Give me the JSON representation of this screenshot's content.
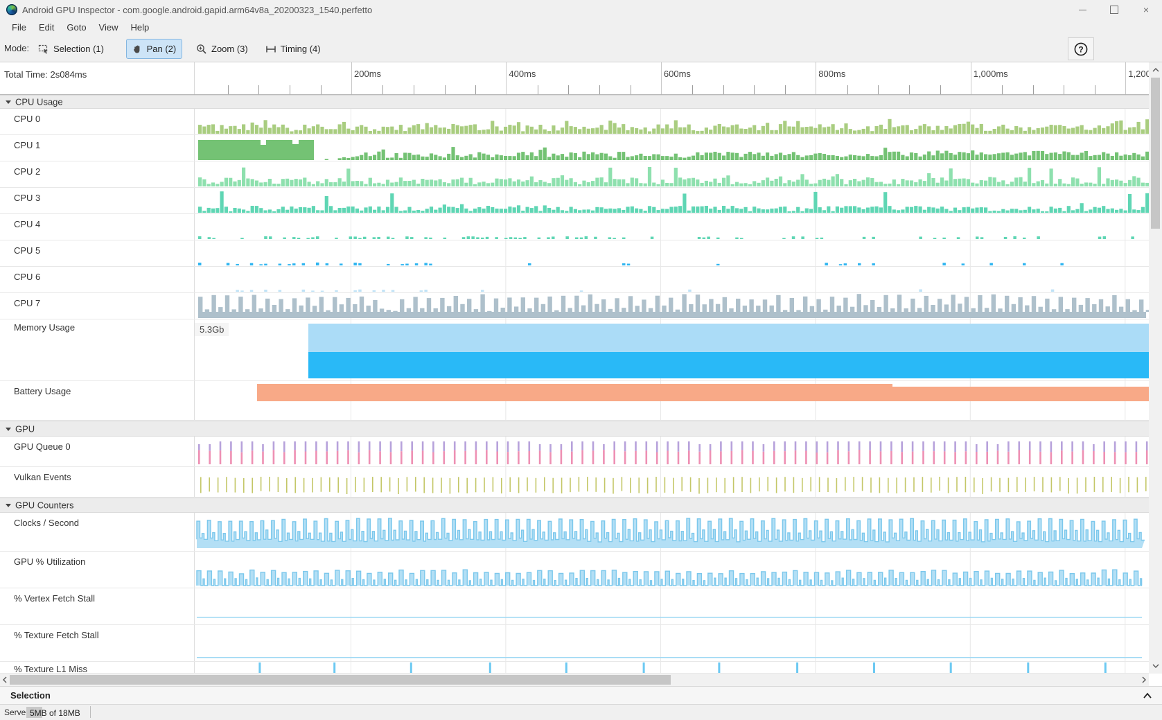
{
  "window": {
    "title": "Android GPU Inspector - com.google.android.gapid.arm64v8a_20200323_1540.perfetto",
    "controls": [
      {
        "name": "minimize-button",
        "icon": "minimize-icon"
      },
      {
        "name": "maximize-button",
        "icon": "maximize-icon"
      },
      {
        "name": "close-button",
        "icon": "close-icon",
        "glyph": "×"
      }
    ]
  },
  "menu": {
    "items": [
      "File",
      "Edit",
      "Goto",
      "View",
      "Help"
    ]
  },
  "toolbar": {
    "mode_label": "Mode:",
    "buttons": [
      {
        "label": "Selection (1)",
        "icon": "selection-icon",
        "active": false
      },
      {
        "label": "Pan (2)",
        "icon": "hand-icon",
        "active": true
      },
      {
        "label": "Zoom (3)",
        "icon": "zoom-icon",
        "active": false
      },
      {
        "label": "Timing (4)",
        "icon": "timing-icon",
        "active": false
      }
    ],
    "active_color": "#cde4f7",
    "help_glyph": "?"
  },
  "ruler": {
    "total_time_label": "Total Time: 2s084ms",
    "scale_label": "40ms",
    "tick_labels": [
      "200ms",
      "400ms",
      "600ms",
      "800ms",
      "1,000ms",
      "1,200ms"
    ]
  },
  "timeline": {
    "groups": [
      {
        "label": "CPU Usage",
        "rows": [
          {
            "label": "CPU 0",
            "kind": "cpu0",
            "color": "#a9cd80"
          },
          {
            "label": "CPU 1",
            "kind": "cpu1",
            "color": "#74c274"
          },
          {
            "label": "CPU 2",
            "kind": "cpu2",
            "color": "#8ee0ae"
          },
          {
            "label": "CPU 3",
            "kind": "cpu3",
            "color": "#5fd6b4"
          },
          {
            "label": "CPU 4",
            "kind": "cpu4",
            "color": "#5fd6b4"
          },
          {
            "label": "CPU 5",
            "kind": "cpu5",
            "color": "#2fb5f0"
          },
          {
            "label": "CPU 6",
            "kind": "cpu6",
            "color": "#bfe2f6"
          },
          {
            "label": "CPU 7",
            "kind": "cpu7",
            "color": "#aec0cb"
          },
          {
            "label": "Memory Usage",
            "kind": "memory",
            "value_label": "5.3Gb",
            "colors": {
              "upper_band": "#abdcf7",
              "lower_band": "#29b9f7"
            }
          },
          {
            "label": "Battery Usage",
            "kind": "battery",
            "color": "#f8a987"
          }
        ]
      },
      {
        "label": "GPU",
        "rows": [
          {
            "label": "GPU Queue 0",
            "kind": "gpu-queue",
            "colors": {
              "top_segment": "#b7a2db",
              "bottom_segment": "#ee90b3"
            }
          },
          {
            "label": "Vulkan Events",
            "kind": "vulkan",
            "color": "#c4c768"
          }
        ]
      },
      {
        "label": "GPU Counters",
        "rows": [
          {
            "label": "Clocks / Second",
            "kind": "counter-area",
            "color": "#b3dff5",
            "stroke": "#7cc8ec"
          },
          {
            "label": "GPU % Utilization",
            "kind": "counter-pulses",
            "color": "#b3dff5",
            "stroke": "#7cc8ec"
          },
          {
            "label": "% Vertex Fetch Stall",
            "kind": "flat-line",
            "color": "#9fd9f4"
          },
          {
            "label": "% Texture Fetch Stall",
            "kind": "flat-line2",
            "color": "#9fd9f4"
          },
          {
            "label": "% Texture L1 Miss",
            "kind": "sparse-spikes",
            "color": "#6cc9f2"
          }
        ]
      }
    ]
  },
  "selection_panel": {
    "title": "Selection",
    "collapse_icon": "chevron-up-icon"
  },
  "status_bar": {
    "server_label": "Server:",
    "usage": "5MB of 18MB"
  }
}
